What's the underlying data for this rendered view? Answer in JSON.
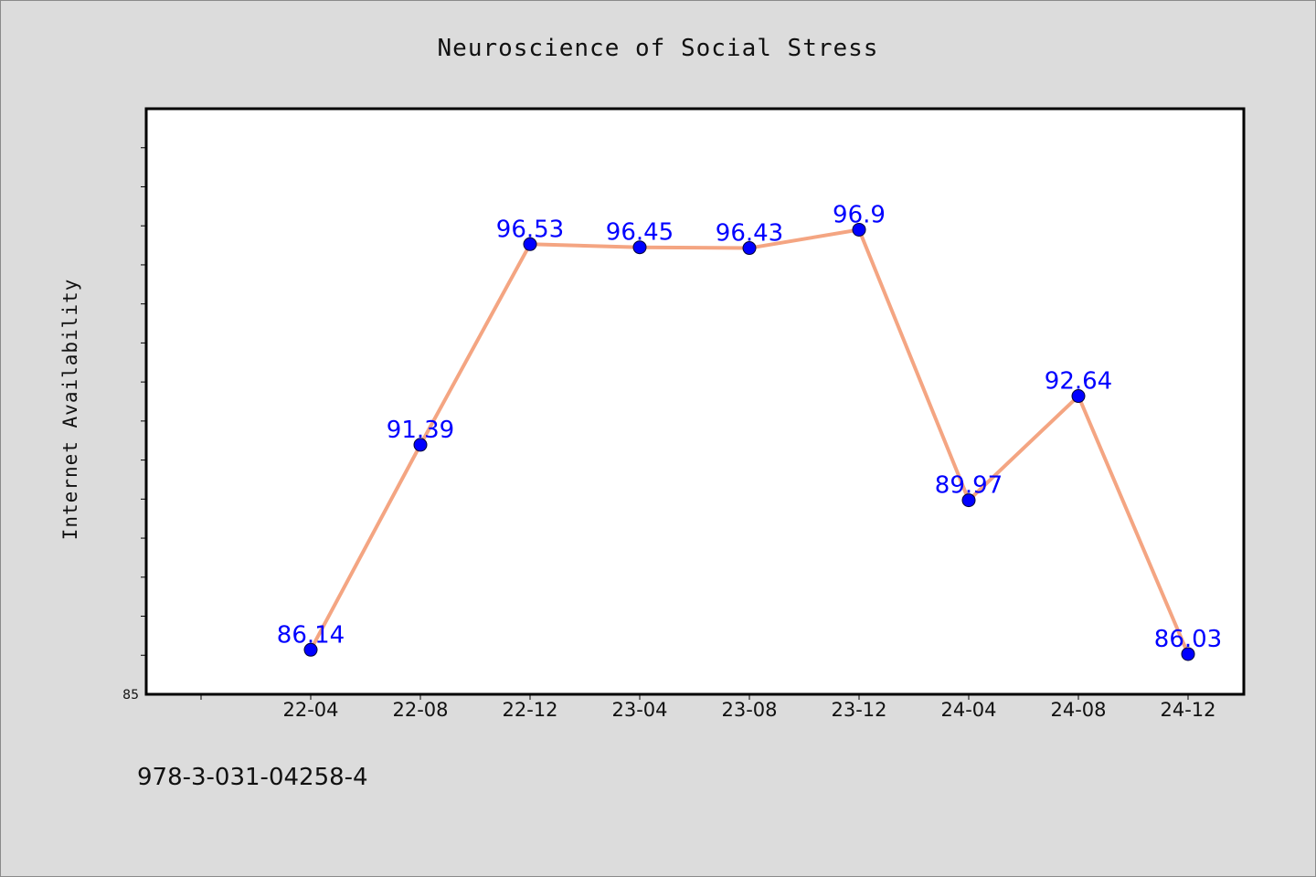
{
  "chart_data": {
    "type": "line",
    "title": "Neuroscience of Social Stress",
    "ylabel": "Internet Availability",
    "xlabel": "",
    "categories": [
      "22-04",
      "22-08",
      "22-12",
      "23-04",
      "23-08",
      "23-12",
      "24-04",
      "24-08",
      "24-12"
    ],
    "series": [
      {
        "values": [
          86.14,
          91.39,
          96.53,
          96.45,
          96.43,
          96.9,
          89.97,
          92.64,
          86.03
        ]
      }
    ],
    "data_labels": [
      "86.14",
      "91.39",
      "96.53",
      "96.45",
      "96.43",
      "96.9",
      "89.97",
      "92.64",
      "86.03"
    ],
    "ylim": [
      85,
      100
    ],
    "y_tick_labels": [
      "85"
    ],
    "grid": false,
    "line_color": "#f4a582",
    "marker_color": "#0000ff",
    "label_color": "#0000ff"
  },
  "footer": {
    "code": "978-3-031-04258-4"
  }
}
